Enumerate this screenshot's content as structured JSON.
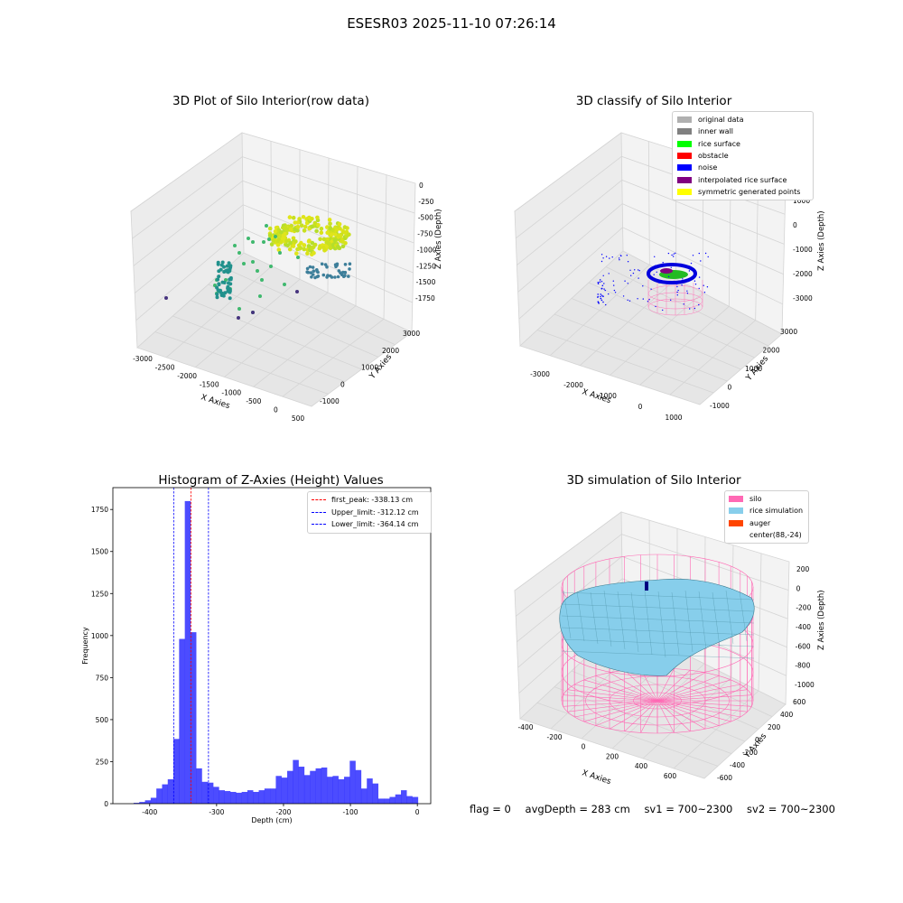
{
  "suptitle": "ESESR03 2025-11-10 07:26:14",
  "panels": {
    "raw": {
      "title": "3D Plot of Silo Interior(row data)",
      "xlabel": "X Axies",
      "ylabel": "Y Axies",
      "zlabel": "Z Axies (Depth)",
      "xticks": [
        "-3000",
        "-2500",
        "-2000",
        "-1500",
        "-1000",
        "-500",
        "0",
        "500"
      ],
      "yticks": [
        "-1000",
        "0",
        "1000",
        "2000",
        "3000"
      ],
      "zticks": [
        "0",
        "-250",
        "-500",
        "-750",
        "-1000",
        "-1250",
        "-1500",
        "-1750"
      ]
    },
    "classify": {
      "title": "3D classify of Silo Interior",
      "xlabel": "X Axies",
      "ylabel": "Y Axies",
      "zlabel": "Z Axies (Depth)",
      "xticks": [
        "-3000",
        "-2000",
        "-1000",
        "0",
        "1000"
      ],
      "yticks": [
        "-1000",
        "0",
        "1000",
        "2000",
        "3000"
      ],
      "zticks": [
        "1000",
        "0",
        "-1000",
        "-2000",
        "-3000"
      ],
      "legend": [
        {
          "label": "original data",
          "color": "#b0b0b0"
        },
        {
          "label": "inner wall",
          "color": "#808080"
        },
        {
          "label": "rice surface",
          "color": "#00ff00"
        },
        {
          "label": "obstacle",
          "color": "#ff0000"
        },
        {
          "label": "noise",
          "color": "#0000ff"
        },
        {
          "label": "interpolated rice surface",
          "color": "#800080"
        },
        {
          "label": "symmetric generated points",
          "color": "#ffff00"
        }
      ]
    },
    "simulation": {
      "title": "3D simulation of Silo Interior",
      "xlabel": "X Axies",
      "ylabel": "Y Axies",
      "zlabel": "Z Axies (Depth)",
      "xticks": [
        "-400",
        "-200",
        "0",
        "200",
        "400",
        "600"
      ],
      "yticks": [
        "-600",
        "-400",
        "-200",
        "0",
        "200",
        "400",
        "600"
      ],
      "zticks": [
        "200",
        "0",
        "-200",
        "-400",
        "-600",
        "-800",
        "-1000"
      ],
      "legend": [
        {
          "label": "silo",
          "color": "#ff69b4"
        },
        {
          "label": "rice simulation",
          "color": "#87ceeb"
        },
        {
          "label": "auger",
          "color": "#ff4500"
        },
        {
          "label": "center(88,-24)",
          "color": ""
        }
      ]
    }
  },
  "chart_data": {
    "type": "bar",
    "title": "Histogram of Z-Axies (Height) Values",
    "xlabel": "Depth (cm)",
    "ylabel": "Frequency",
    "xlim": [
      -455,
      20
    ],
    "ylim": [
      0,
      1880
    ],
    "xticks": [
      -400,
      -300,
      -200,
      -100,
      0
    ],
    "yticks": [
      0,
      250,
      500,
      750,
      1000,
      1250,
      1500,
      1750
    ],
    "bin_width": 8.5,
    "bin_starts": [
      -424.0,
      -415.5,
      -407.0,
      -398.5,
      -390.0,
      -381.5,
      -373.0,
      -364.5,
      -356.0,
      -347.5,
      -339.0,
      -330.5,
      -322.0,
      -313.5,
      -305.0,
      -296.5,
      -288.0,
      -279.5,
      -271.0,
      -262.5,
      -254.0,
      -245.5,
      -237.0,
      -228.5,
      -220.0,
      -211.5,
      -203.0,
      -194.5,
      -186.0,
      -177.5,
      -169.0,
      -160.5,
      -152.0,
      -143.5,
      -135.0,
      -126.5,
      -118.0,
      -109.5,
      -101.0,
      -92.5,
      -84.0,
      -75.5,
      -67.0,
      -58.5,
      -50.0,
      -41.5,
      -33.0,
      -24.5,
      -16.0,
      -7.5
    ],
    "counts": [
      5,
      10,
      20,
      35,
      90,
      115,
      145,
      385,
      980,
      1800,
      1020,
      210,
      130,
      125,
      100,
      80,
      75,
      70,
      65,
      70,
      80,
      70,
      80,
      90,
      90,
      165,
      155,
      195,
      260,
      220,
      170,
      195,
      210,
      215,
      160,
      165,
      145,
      160,
      255,
      200,
      90,
      150,
      120,
      30,
      30,
      40,
      55,
      80,
      45,
      40
    ],
    "reference_lines": [
      {
        "label": "first_peak: -338.13 cm",
        "x": -338.13,
        "color": "#ff0000"
      },
      {
        "label": "Upper_limit: -312.12 cm",
        "x": -312.12,
        "color": "#0000ff"
      },
      {
        "label": "Lower_limit: -364.14 cm",
        "x": -364.14,
        "color": "#0000ff"
      }
    ],
    "bar_color": "#0000ff"
  },
  "footer": {
    "flag": "flag = 0",
    "avg": "avgDepth = 283 cm",
    "sv1": "sv1 = 700~2300",
    "sv2": "sv2 = 700~2300"
  }
}
